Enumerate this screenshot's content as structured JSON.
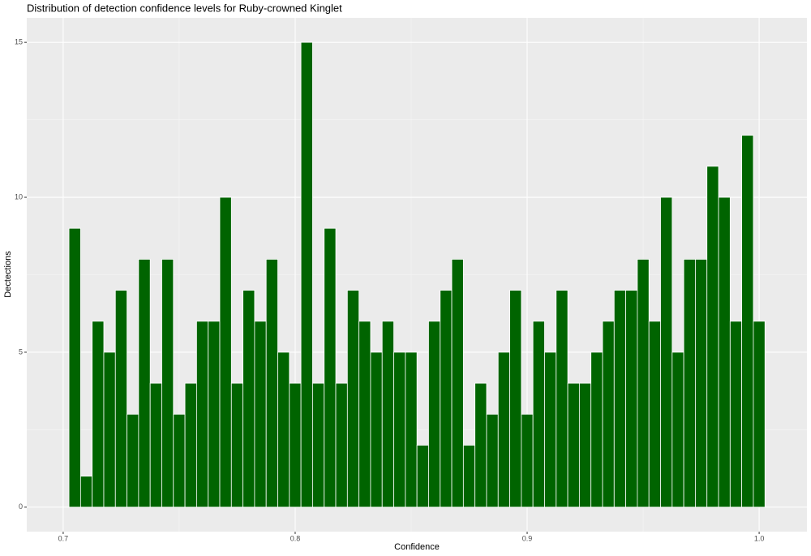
{
  "chart_data": {
    "type": "histogram",
    "title": "Distribution of detection confidence levels for Ruby-crowned Kinglet",
    "x_label": "Confidence",
    "y_label": "Dectections",
    "bins": [
      0.7025,
      0.7075,
      0.7125,
      0.7175,
      0.7225,
      0.7275,
      0.7325,
      0.7375,
      0.7425,
      0.7475,
      0.7525,
      0.7575,
      0.7625,
      0.7675,
      0.7725,
      0.7775,
      0.7825,
      0.7875,
      0.7925,
      0.7975,
      0.8025,
      0.8075,
      0.8125,
      0.8175,
      0.8225,
      0.8275,
      0.8325,
      0.8375,
      0.8425,
      0.8475,
      0.8525,
      0.8575,
      0.8625,
      0.8675,
      0.8725,
      0.8775,
      0.8825,
      0.8875,
      0.8925,
      0.8975,
      0.9025,
      0.9075,
      0.9125,
      0.9175,
      0.9225,
      0.9275,
      0.9325,
      0.9375,
      0.9425,
      0.9475,
      0.9525,
      0.9575,
      0.9625,
      0.9675,
      0.9725,
      0.9775,
      0.9825,
      0.9875,
      0.9925,
      0.9975,
      1.0025
    ],
    "values": [
      9,
      1,
      6,
      5,
      7,
      3,
      8,
      4,
      8,
      3,
      4,
      6,
      6,
      10,
      4,
      7,
      6,
      8,
      5,
      4,
      15,
      4,
      9,
      4,
      7,
      6,
      5,
      6,
      5,
      5,
      2,
      6,
      7,
      8,
      2,
      4,
      3,
      5,
      7,
      3,
      6,
      5,
      7,
      4,
      4,
      5,
      6,
      7,
      7,
      8,
      6,
      10,
      5,
      8,
      8,
      11,
      10,
      6,
      12,
      6
    ],
    "color": "#006400",
    "xlim": [
      0.6843,
      1.0206
    ],
    "xticks": [
      0.7,
      0.8,
      0.9,
      {
        "value": 1.0,
        "label": "1.0"
      }
    ],
    "xminor": [
      0.75,
      0.85,
      0.95
    ],
    "ylim": [
      -0.79,
      15.79
    ],
    "yticks": [
      0,
      5,
      10,
      15
    ],
    "yminor": [
      2.5,
      7.5,
      12.5
    ],
    "grid": true
  }
}
